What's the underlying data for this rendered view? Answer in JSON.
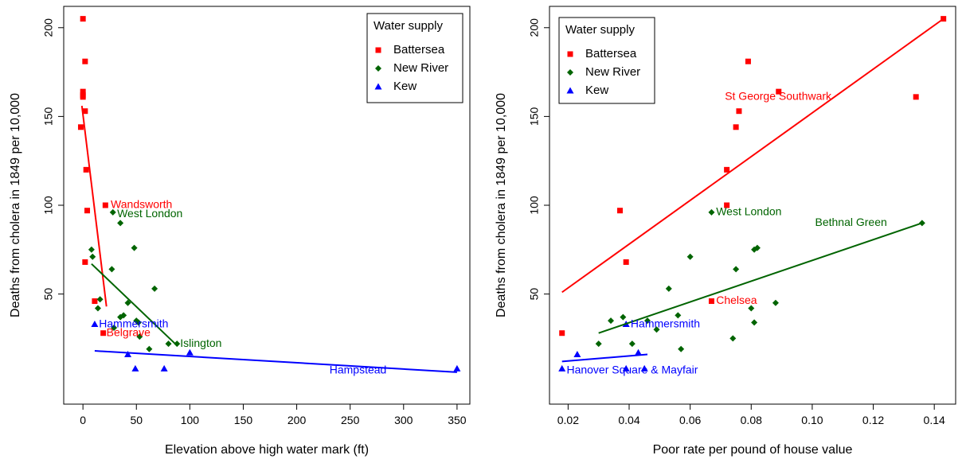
{
  "colors": {
    "Battersea": "#ff0000",
    "New River": "#006400",
    "Kew": "#0000ff"
  },
  "chart_data": [
    {
      "type": "scatter",
      "xlabel": "Elevation above high water mark (ft)",
      "ylabel": "Deaths from cholera in 1849 per 10,000",
      "xlim": [
        -18,
        362
      ],
      "ylim": [
        -12,
        212
      ],
      "xticks": [
        0,
        50,
        100,
        150,
        200,
        250,
        300,
        350
      ],
      "yticks": [
        50,
        100,
        150,
        200
      ],
      "grid": false,
      "legend": {
        "title": "Water supply",
        "placement": "top-right",
        "entries": [
          "Battersea",
          "New River",
          "Kew"
        ]
      },
      "series": [
        {
          "name": "Battersea",
          "marker": "square",
          "points": [
            [
              0,
              205
            ],
            [
              2,
              181
            ],
            [
              0,
              164
            ],
            [
              0,
              162
            ],
            [
              0,
              161
            ],
            [
              2,
              153
            ],
            [
              -2,
              144
            ],
            [
              3,
              120
            ],
            [
              21,
              100
            ],
            [
              4,
              97
            ],
            [
              2,
              68
            ],
            [
              11,
              46
            ],
            [
              19,
              28
            ]
          ]
        },
        {
          "name": "New River",
          "marker": "diamond",
          "points": [
            [
              28,
              96
            ],
            [
              35,
              90
            ],
            [
              8,
              75
            ],
            [
              48,
              76
            ],
            [
              9,
              71
            ],
            [
              27,
              64
            ],
            [
              67,
              53
            ],
            [
              16,
              47
            ],
            [
              42,
              45
            ],
            [
              14,
              42
            ],
            [
              35,
              37
            ],
            [
              38,
              38
            ],
            [
              50,
              35
            ],
            [
              52,
              34
            ],
            [
              29,
              31
            ],
            [
              88,
              22
            ],
            [
              80,
              22
            ],
            [
              62,
              19
            ],
            [
              53,
              26
            ]
          ]
        },
        {
          "name": "Kew",
          "marker": "triangle",
          "points": [
            [
              11,
              33
            ],
            [
              42,
              16
            ],
            [
              100,
              17
            ],
            [
              49,
              8
            ],
            [
              76,
              8
            ],
            [
              350,
              8
            ]
          ]
        }
      ],
      "lines": [
        {
          "series": "Battersea",
          "x": [
            -1,
            22
          ],
          "y": [
            156,
            43
          ]
        },
        {
          "series": "New River",
          "x": [
            8,
            88
          ],
          "y": [
            67,
            21
          ]
        },
        {
          "series": "Kew",
          "x": [
            11,
            350
          ],
          "y": [
            18,
            6
          ]
        }
      ],
      "annotations": [
        {
          "text": "Wandsworth",
          "x": 26,
          "y": 100,
          "series": "Battersea"
        },
        {
          "text": "Belgrave",
          "x": 22,
          "y": 28,
          "series": "Battersea"
        },
        {
          "text": "West London",
          "x": 32,
          "y": 95,
          "series": "New River"
        },
        {
          "text": "Islington",
          "x": 91,
          "y": 22,
          "series": "New River"
        },
        {
          "text": "Hammersmith",
          "x": 15,
          "y": 33,
          "series": "Kew"
        },
        {
          "text": "Hampstead",
          "x": 284,
          "y": 7,
          "series": "Kew"
        }
      ]
    },
    {
      "type": "scatter",
      "xlabel": "Poor rate per pound of house value",
      "ylabel": "Deaths from cholera in 1849 per 10,000",
      "xlim": [
        0.0139,
        0.147
      ],
      "ylim": [
        -12,
        212
      ],
      "xticks": [
        0.02,
        0.04,
        0.06,
        0.08,
        0.1,
        0.12,
        0.14
      ],
      "xtick_labels": [
        "0.02",
        "0.04",
        "0.06",
        "0.08",
        "0.10",
        "0.12",
        "0.14"
      ],
      "yticks": [
        50,
        100,
        150,
        200
      ],
      "grid": false,
      "legend": {
        "title": "Water supply",
        "placement": "top-left",
        "entries": [
          "Battersea",
          "New River",
          "Kew"
        ]
      },
      "series": [
        {
          "name": "Battersea",
          "marker": "square",
          "points": [
            [
              0.143,
              205
            ],
            [
              0.079,
              181
            ],
            [
              0.089,
              164
            ],
            [
              0.134,
              161
            ],
            [
              0.076,
              153
            ],
            [
              0.075,
              144
            ],
            [
              0.072,
              120
            ],
            [
              0.072,
              100
            ],
            [
              0.037,
              97
            ],
            [
              0.039,
              68
            ],
            [
              0.067,
              46
            ],
            [
              0.018,
              28
            ]
          ]
        },
        {
          "name": "New River",
          "marker": "diamond",
          "points": [
            [
              0.067,
              96
            ],
            [
              0.136,
              90
            ],
            [
              0.081,
              75
            ],
            [
              0.082,
              76
            ],
            [
              0.06,
              71
            ],
            [
              0.075,
              64
            ],
            [
              0.053,
              53
            ],
            [
              0.088,
              45
            ],
            [
              0.08,
              42
            ],
            [
              0.056,
              38
            ],
            [
              0.038,
              37
            ],
            [
              0.034,
              35
            ],
            [
              0.081,
              34
            ],
            [
              0.049,
              30
            ],
            [
              0.046,
              35
            ],
            [
              0.03,
              22
            ],
            [
              0.041,
              22
            ],
            [
              0.057,
              19
            ],
            [
              0.074,
              25
            ]
          ]
        },
        {
          "name": "Kew",
          "marker": "triangle",
          "points": [
            [
              0.039,
              33
            ],
            [
              0.023,
              16
            ],
            [
              0.043,
              17
            ],
            [
              0.018,
              8
            ],
            [
              0.039,
              8
            ],
            [
              0.045,
              8
            ]
          ]
        }
      ],
      "lines": [
        {
          "series": "Battersea",
          "x": [
            0.018,
            0.143
          ],
          "y": [
            51,
            205
          ]
        },
        {
          "series": "New River",
          "x": [
            0.03,
            0.136
          ],
          "y": [
            28,
            90
          ]
        },
        {
          "series": "Kew",
          "x": [
            0.018,
            0.046
          ],
          "y": [
            12,
            16
          ]
        }
      ],
      "annotations": [
        {
          "text": "St George Southwark",
          "x": 0.1063,
          "y": 161,
          "series": "Battersea"
        },
        {
          "text": "Chelsea",
          "x": 0.0685,
          "y": 46,
          "series": "Battersea"
        },
        {
          "text": "West London",
          "x": 0.0685,
          "y": 96,
          "series": "New River"
        },
        {
          "text": "Bethnal Green",
          "x": 0.1245,
          "y": 90,
          "series": "New River"
        },
        {
          "text": "Hammersmith",
          "x": 0.0405,
          "y": 33,
          "series": "Kew"
        },
        {
          "text": "Hanover Square & Mayfair",
          "x": 0.0195,
          "y": 7,
          "series": "Kew"
        }
      ]
    }
  ]
}
